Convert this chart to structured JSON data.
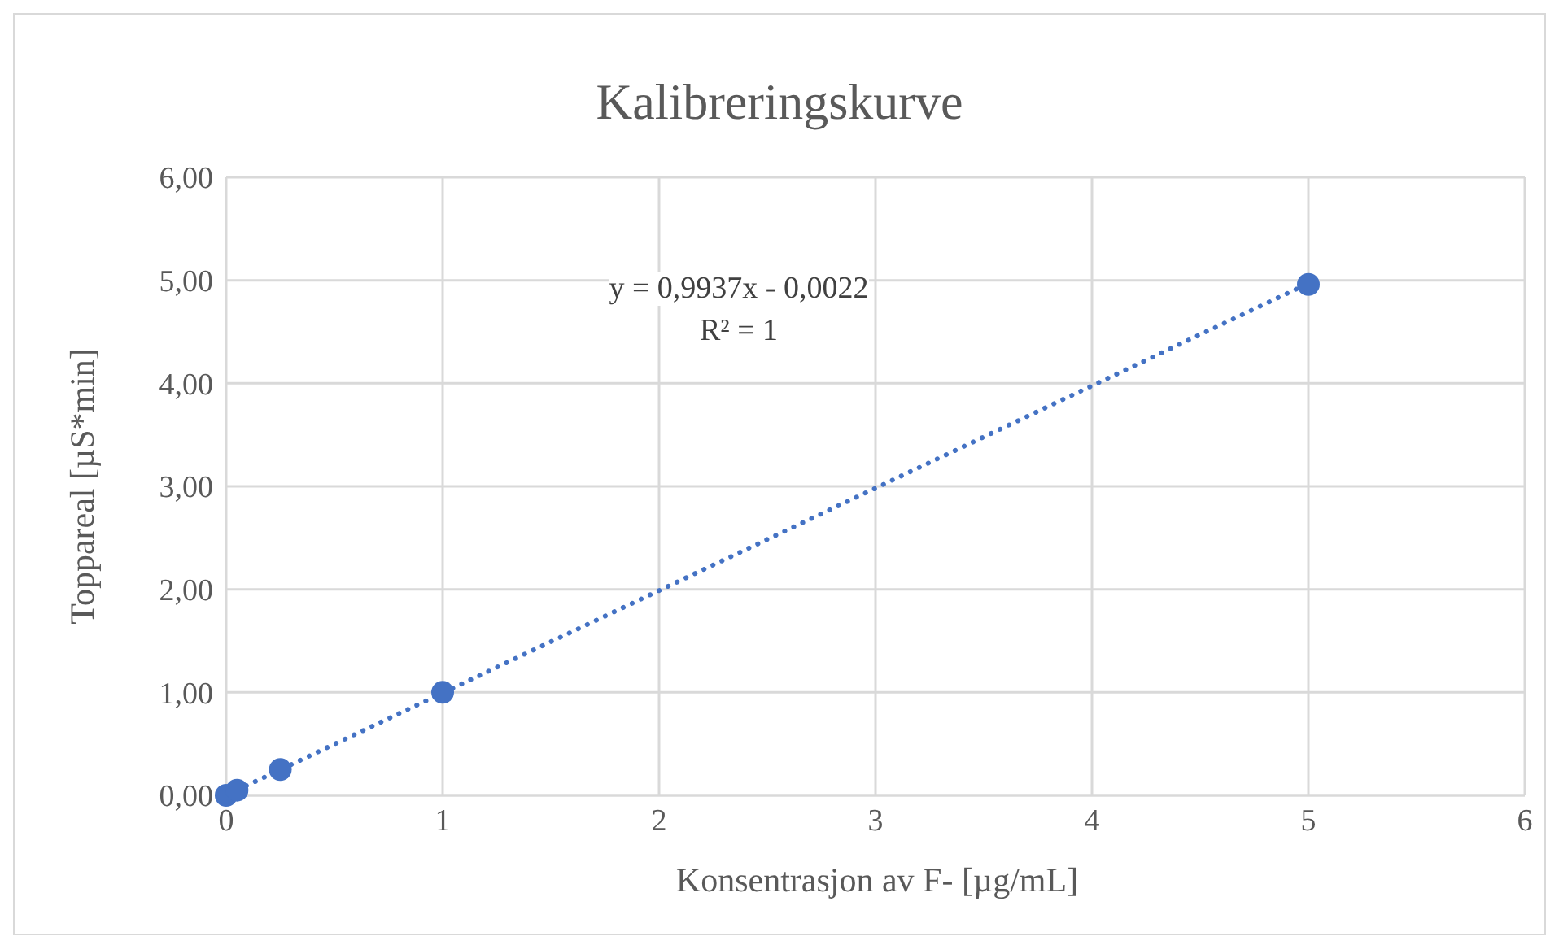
{
  "chart_data": {
    "type": "scatter",
    "title": "Kalibreringskurve",
    "xlabel": "Konsentrasjon av F- [µg/mL]",
    "ylabel": "Toppareal [µS*min]",
    "annotations": [
      "y = 0,9937x - 0,0022",
      "R² = 1"
    ],
    "series": [
      {
        "type": "line",
        "color": "#4472c4",
        "marker": "none",
        "line_style": "dotted",
        "x": [
          0.01,
          5
        ],
        "values": [
          0.01,
          4.97
        ]
      },
      {
        "color": "#4472c4",
        "marker": "circle",
        "x": [
          0,
          0.05,
          0.25,
          1,
          5
        ],
        "values": [
          0,
          0.05,
          0.25,
          1.0,
          4.96
        ]
      }
    ],
    "xlim": [
      0,
      6
    ],
    "xticks": [
      0,
      1,
      2,
      3,
      4,
      5,
      6
    ],
    "ylim": [
      0,
      6
    ],
    "yticks": [
      {
        "value": 0,
        "label": "0,00"
      },
      {
        "value": 1,
        "label": "1,00"
      },
      {
        "value": 2,
        "label": "2,00"
      },
      {
        "value": 3,
        "label": "3,00"
      },
      {
        "value": 4,
        "label": "4,00"
      },
      {
        "value": 5,
        "label": "5,00"
      },
      {
        "value": 6,
        "label": "6,00"
      }
    ],
    "grid": true,
    "legend": false
  }
}
